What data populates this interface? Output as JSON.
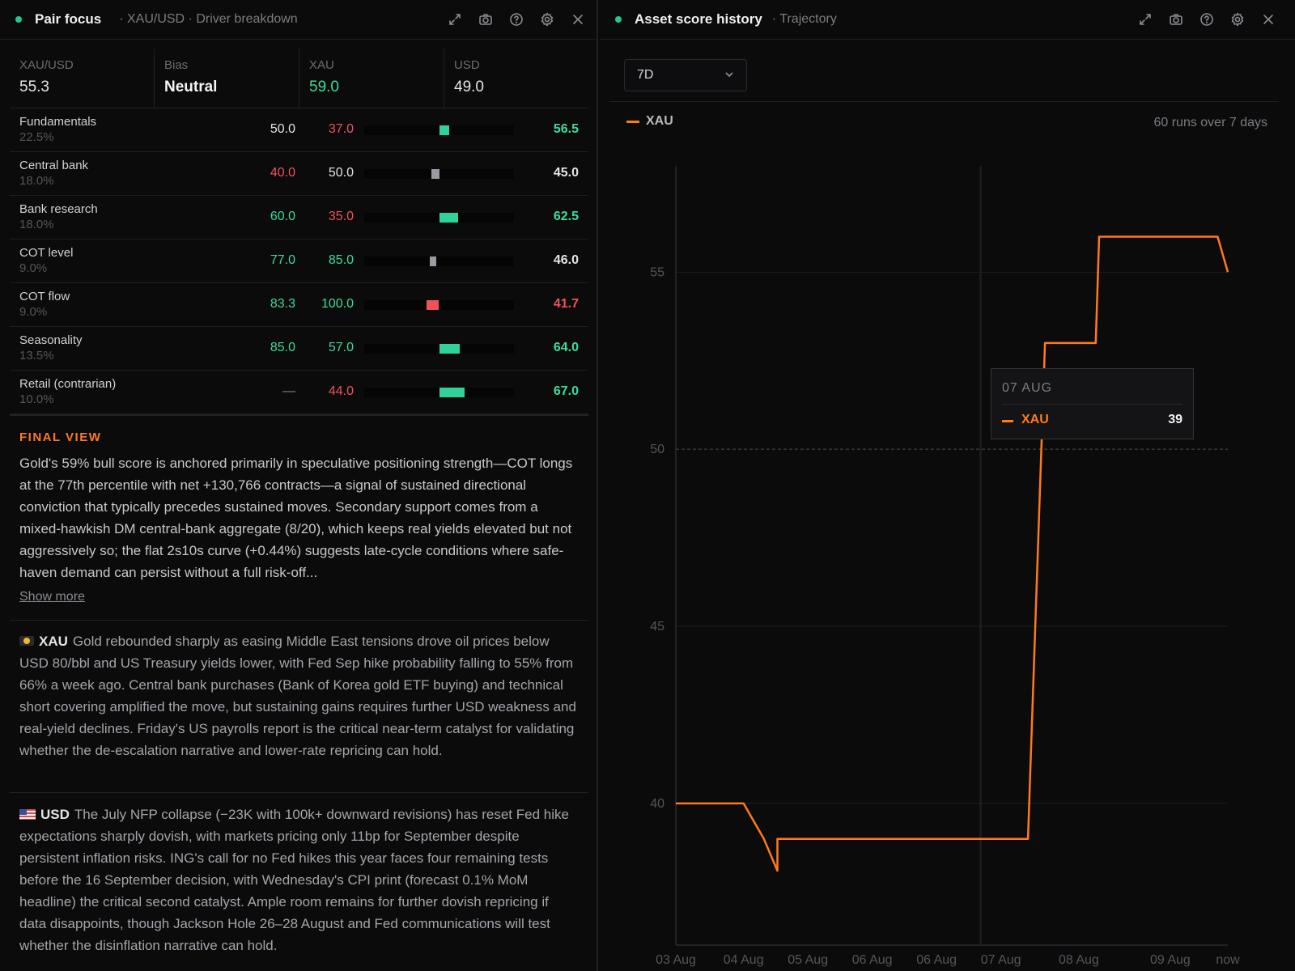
{
  "left_panel": {
    "title": "Pair focus",
    "subtitle": "· XAU/USD · Driver breakdown",
    "icons": [
      "expand-icon",
      "camera-icon",
      "help-icon",
      "settings-icon",
      "close-icon"
    ]
  },
  "summary": {
    "pair_label": "XAU/USD",
    "pair_value": "55.3",
    "bias_label": "Bias",
    "bias_value": "Neutral",
    "base_label": "XAU",
    "base_value": "59.0",
    "quote_label": "USD",
    "quote_value": "49.0"
  },
  "drivers": [
    {
      "name": "Fundamentals",
      "weight": "22.5%",
      "v1": "50.0",
      "v1_color": "white",
      "v2": "37.0",
      "v2_color": "red",
      "v3": "56.5",
      "v3_color": "green",
      "bar_fill": 0.565,
      "bar_color": "#2fd39a"
    },
    {
      "name": "Central bank",
      "weight": "18.0%",
      "v1": "40.0",
      "v1_color": "red",
      "v2": "50.0",
      "v2_color": "white",
      "v3": "45.0",
      "v3_color": "white",
      "bar_fill": 0.45,
      "bar_color": "#9a9aa0"
    },
    {
      "name": "Bank research",
      "weight": "18.0%",
      "v1": "60.0",
      "v1_color": "green",
      "v2": "35.0",
      "v2_color": "red",
      "v3": "62.5",
      "v3_color": "green",
      "bar_fill": 0.625,
      "bar_color": "#2fd39a"
    },
    {
      "name": "COT level",
      "weight": "9.0%",
      "v1": "77.0",
      "v1_color": "green",
      "v2": "85.0",
      "v2_color": "green",
      "v3": "46.0",
      "v3_color": "white",
      "bar_fill": 0.46,
      "bar_color": "#9a9aa0"
    },
    {
      "name": "COT flow",
      "weight": "9.0%",
      "v1": "83.3",
      "v1_color": "green",
      "v2": "100.0",
      "v2_color": "green",
      "v3": "41.7",
      "v3_color": "red",
      "bar_fill": 0.417,
      "bar_color": "#f0525a"
    },
    {
      "name": "Seasonality",
      "weight": "13.5%",
      "v1": "85.0",
      "v1_color": "green",
      "v2": "57.0",
      "v2_color": "green",
      "v3": "64.0",
      "v3_color": "green",
      "bar_fill": 0.64,
      "bar_color": "#2fd39a"
    },
    {
      "name": "Retail (contrarian)",
      "weight": "10.0%",
      "v1": "—",
      "v1_color": "dim",
      "v2": "44.0",
      "v2_color": "red",
      "v3": "67.0",
      "v3_color": "green",
      "bar_fill": 0.67,
      "bar_color": "#2fd39a"
    }
  ],
  "final_view": {
    "title": "FINAL VIEW",
    "text": "Gold's 59% bull score is anchored primarily in speculative positioning strength—COT longs at the 77th percentile with net +130,766 contracts—a signal of sustained directional conviction that typically precedes sustained moves. Secondary support comes from a mixed-hawkish DM central-bank aggregate (8/20), which keeps real yields elevated but not aggressively so; the flat 2s10s curve (+0.44%) suggests late-cycle conditions where safe-haven demand can persist without a full risk-off...",
    "show_more": "Show more"
  },
  "notes": {
    "xau_asset": "XAU",
    "xau_text": "Gold rebounded sharply as easing Middle East tensions drove oil prices below USD 80/bbl and US Treasury yields lower, with Fed Sep hike probability falling to 55% from 66% a week ago. Central bank purchases (Bank of Korea gold ETF buying) and technical short covering amplified the move, but sustaining gains requires further USD weakness and real-yield declines. Friday's US payrolls report is the critical near-term catalyst for validating whether the de-escalation narrative and lower-rate repricing can hold.",
    "usd_asset": "USD",
    "usd_text": "The July NFP collapse (−23K with 100k+ downward revisions) has reset Fed hike expectations sharply dovish, with markets pricing only 11bp for September despite persistent inflation risks. ING's call for no Fed hikes this year faces four remaining tests before the 16 September decision, with Wednesday's CPI print (forecast 0.1% MoM headline) the critical second catalyst. Ample room remains for further dovish repricing if data disappoints, though Jackson Hole 26–28 August and Fed communications will test whether the disinflation narrative can hold."
  },
  "right_panel": {
    "title": "Asset score history",
    "subtitle": "· Trajectory",
    "range_value": "7D",
    "legend_label": "XAU",
    "runs_note": "60 runs over 7 days",
    "icons": [
      "expand-icon",
      "camera-icon",
      "help-icon",
      "settings-icon",
      "close-icon"
    ]
  },
  "tooltip": {
    "date": "07 AUG",
    "series": "XAU",
    "value": "39"
  },
  "chart_data": {
    "type": "line",
    "series": [
      {
        "name": "XAU",
        "color": "#ff7a1a",
        "points": [
          {
            "t": 0.0,
            "y": 40
          },
          {
            "t": 1.0,
            "y": 40
          },
          {
            "t": 1.3,
            "y": 39
          },
          {
            "t": 1.5,
            "y": 38.1
          },
          {
            "t": 1.5,
            "y": 39
          },
          {
            "t": 5.2,
            "y": 39
          },
          {
            "t": 5.45,
            "y": 53
          },
          {
            "t": 5.6,
            "y": 53
          },
          {
            "t": 6.2,
            "y": 53
          },
          {
            "t": 6.25,
            "y": 56
          },
          {
            "t": 8.0,
            "y": 56
          },
          {
            "t": 8.15,
            "y": 55
          }
        ]
      }
    ],
    "x_ticks": [
      {
        "t": 0.0,
        "label": "03 Aug"
      },
      {
        "t": 1.0,
        "label": "04 Aug"
      },
      {
        "t": 1.95,
        "label": "05 Aug"
      },
      {
        "t": 2.9,
        "label": "06 Aug"
      },
      {
        "t": 3.85,
        "label": "06 Aug"
      },
      {
        "t": 4.8,
        "label": "07 Aug"
      },
      {
        "t": 5.95,
        "label": "08 Aug"
      },
      {
        "t": 7.3,
        "label": "09 Aug"
      },
      {
        "t": 8.15,
        "label": "now"
      }
    ],
    "x_range": [
      0,
      8.15
    ],
    "y_ticks": [
      40,
      45,
      50,
      55
    ],
    "y_range": [
      36,
      58
    ],
    "reference_line": 50,
    "hover_t": 4.5,
    "grid": true,
    "legend": "top-left"
  }
}
